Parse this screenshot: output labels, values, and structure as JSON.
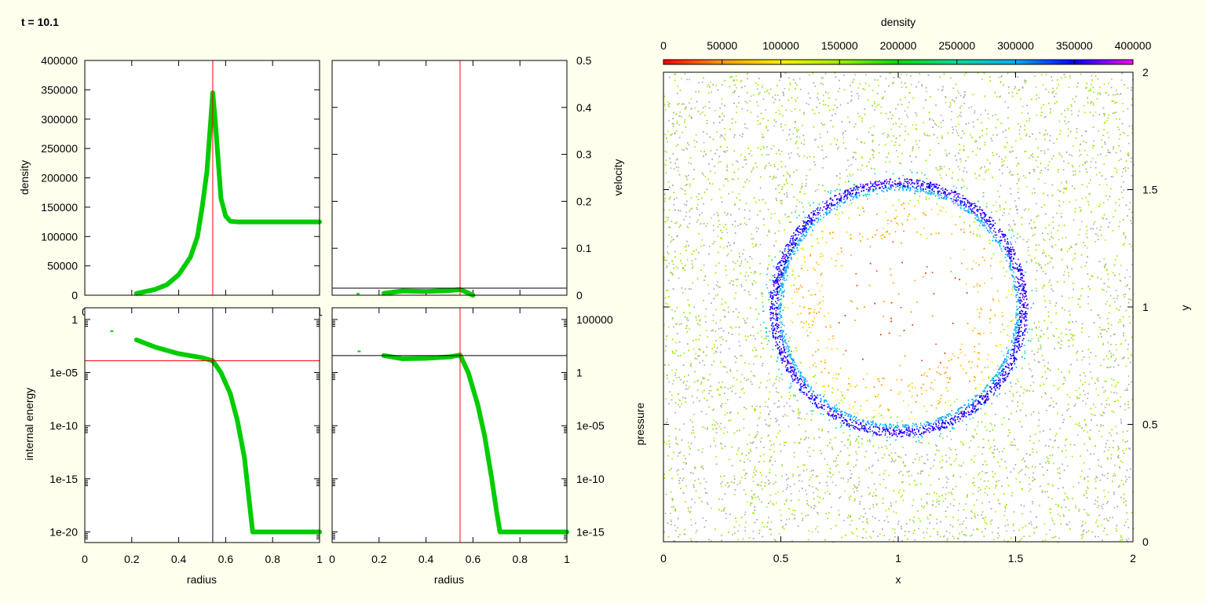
{
  "title": "t = 10.1",
  "chart_data": [
    {
      "type": "scatter",
      "panel": "density",
      "xlabel": "radius",
      "ylabel": "density",
      "xlim": [
        0,
        1
      ],
      "ylim": [
        0,
        400000
      ],
      "xticks": [
        "0",
        "0.2",
        "0.4",
        "0.6",
        "0.8",
        "1"
      ],
      "yticks": [
        "0",
        "50000",
        "100000",
        "150000",
        "200000",
        "250000",
        "300000",
        "350000",
        "400000"
      ],
      "y_axis_side": "left",
      "series_color": "#00cc00",
      "points": [
        [
          0.22,
          3000
        ],
        [
          0.3,
          10000
        ],
        [
          0.35,
          18000
        ],
        [
          0.4,
          35000
        ],
        [
          0.45,
          65000
        ],
        [
          0.48,
          100000
        ],
        [
          0.5,
          150000
        ],
        [
          0.52,
          210000
        ],
        [
          0.535,
          290000
        ],
        [
          0.545,
          345000
        ],
        [
          0.555,
          300000
        ],
        [
          0.57,
          220000
        ],
        [
          0.58,
          165000
        ],
        [
          0.6,
          135000
        ],
        [
          0.62,
          126000
        ],
        [
          0.65,
          125000
        ],
        [
          1.0,
          125000
        ]
      ],
      "vline": {
        "x": 0.545,
        "color": "#ff0000"
      }
    },
    {
      "type": "scatter",
      "panel": "velocity",
      "xlabel": "",
      "ylabel": "velocity",
      "xlim": [
        0,
        1
      ],
      "ylim": [
        0,
        0.5
      ],
      "xticks": [],
      "yticks": [
        "0",
        "0.1",
        "0.2",
        "0.3",
        "0.4",
        "0.5"
      ],
      "y_axis_side": "right",
      "series_color": "#00cc00",
      "points": [
        [
          0.22,
          0.004
        ],
        [
          0.3,
          0.009
        ],
        [
          0.4,
          0.008
        ],
        [
          0.5,
          0.01
        ],
        [
          0.545,
          0.012
        ],
        [
          0.57,
          0.007
        ],
        [
          0.6,
          0.0
        ]
      ],
      "isolated": [
        [
          0.11,
          0.003
        ]
      ],
      "vline": {
        "x": 0.545,
        "color": "#ff0000"
      },
      "hline": {
        "y": 0.015,
        "color": "#000000"
      }
    },
    {
      "type": "scatter",
      "panel": "internal energy",
      "xlabel": "radius",
      "ylabel": "internal energy",
      "xlim": [
        0,
        1
      ],
      "ylim_log10": [
        -21,
        1.1
      ],
      "log_y": true,
      "xticks": [
        "0",
        "0.2",
        "0.4",
        "0.6",
        "0.8",
        "1"
      ],
      "yticks": [
        "1",
        "1e-05",
        "1e-10",
        "1e-15",
        "1e-20"
      ],
      "y_axis_side": "left",
      "series_color": "#00cc00",
      "points": [
        [
          0.22,
          0.012
        ],
        [
          0.3,
          0.0025
        ],
        [
          0.4,
          0.0006
        ],
        [
          0.5,
          0.00025
        ],
        [
          0.545,
          0.00013
        ],
        [
          0.58,
          1e-05
        ],
        [
          0.62,
          1e-07
        ],
        [
          0.65,
          3e-10
        ],
        [
          0.68,
          1e-13
        ],
        [
          0.7,
          1e-17
        ],
        [
          0.715,
          1e-20
        ],
        [
          1.0,
          1e-20
        ]
      ],
      "isolated": [
        [
          0.115,
          0.08
        ]
      ],
      "vline": {
        "x": 0.545,
        "color": "#000000"
      },
      "hline": {
        "y": 0.00013,
        "color": "#ff0000"
      }
    },
    {
      "type": "scatter",
      "panel": "pressure",
      "xlabel": "radius",
      "ylabel": "pressure",
      "xlim": [
        0,
        1
      ],
      "ylim_log10": [
        -16,
        6.1
      ],
      "log_y": true,
      "xticks": [
        "0",
        "0.2",
        "0.4",
        "0.6",
        "0.8",
        "1"
      ],
      "yticks": [
        "100000",
        "1",
        "1e-05",
        "1e-10",
        "1e-15"
      ],
      "y_axis_side": "right",
      "series_color": "#00cc00",
      "points": [
        [
          0.22,
          40
        ],
        [
          0.3,
          20
        ],
        [
          0.4,
          22
        ],
        [
          0.5,
          30
        ],
        [
          0.545,
          45
        ],
        [
          0.58,
          1
        ],
        [
          0.62,
          0.001
        ],
        [
          0.65,
          1e-06
        ],
        [
          0.68,
          1e-10
        ],
        [
          0.7,
          1e-13
        ],
        [
          0.715,
          1e-15
        ],
        [
          1.0,
          1e-15
        ]
      ],
      "isolated": [
        [
          0.115,
          100
        ]
      ],
      "vline": {
        "x": 0.545,
        "color": "#ff0000"
      },
      "hline": {
        "y": 40,
        "color": "#000000"
      }
    },
    {
      "type": "heatmap",
      "panel": "density map",
      "title": "density",
      "xlabel": "x",
      "ylabel": "y",
      "xlim": [
        0,
        2
      ],
      "ylim": [
        0,
        2
      ],
      "xticks": [
        "0",
        "0.5",
        "1",
        "1.5",
        "2"
      ],
      "yticks": [
        "0",
        "0.5",
        "1",
        "1.5",
        "2"
      ],
      "colorbar": {
        "range": [
          0,
          400000
        ],
        "ticks": [
          "0",
          "50000",
          "100000",
          "150000",
          "200000",
          "250000",
          "300000",
          "350000",
          "400000"
        ],
        "colors": [
          "#ff0000",
          "#ff9900",
          "#ffee00",
          "#99ee00",
          "#00dd00",
          "#00dd99",
          "#00aaff",
          "#0000ff",
          "#ff00ff"
        ]
      },
      "shell": {
        "center": [
          1.0,
          1.0
        ],
        "radius": 0.53,
        "peak_density": 345000,
        "ambient_density": 125000
      }
    }
  ]
}
